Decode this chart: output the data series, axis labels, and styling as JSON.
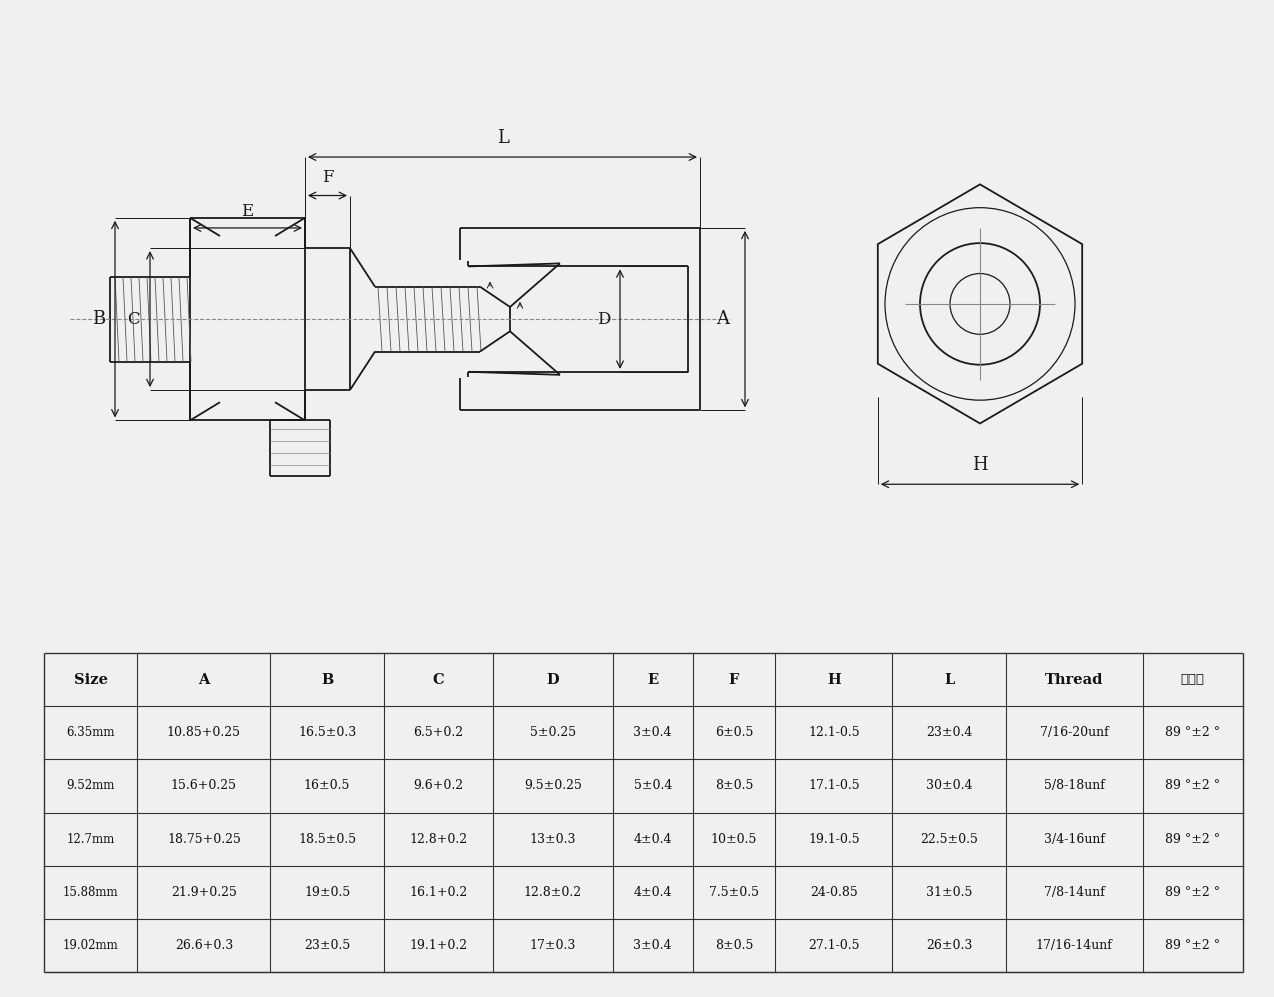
{
  "bg_color": "#f0f0f0",
  "table_headers": [
    "Size",
    "A",
    "B",
    "C",
    "D",
    "E",
    "F",
    "H",
    "L",
    "Thread",
    "密封度"
  ],
  "table_rows": [
    [
      "6.35mm",
      "10.85+0.25",
      "16.5±0.3",
      "6.5+0.2",
      "5±0.25",
      "3±0.4",
      "6±0.5",
      "12.1-0.5",
      "23±0.4",
      "7/16-20unf",
      "89 °±2 °"
    ],
    [
      "9.52mm",
      "15.6+0.25",
      "16±0.5",
      "9.6+0.2",
      "9.5±0.25",
      "5±0.4",
      "8±0.5",
      "17.1-0.5",
      "30±0.4",
      "5/8-18unf",
      "89 °±2 °"
    ],
    [
      "12.7mm",
      "18.75+0.25",
      "18.5±0.5",
      "12.8+0.2",
      "13±0.3",
      "4±0.4",
      "10±0.5",
      "19.1-0.5",
      "22.5±0.5",
      "3/4-16unf",
      "89 °±2 °"
    ],
    [
      "15.88mm",
      "21.9+0.25",
      "19±0.5",
      "16.1+0.2",
      "12.8±0.2",
      "4±0.4",
      "7.5±0.5",
      "24-0.85",
      "31±0.5",
      "7/8-14unf",
      "89 °±2 °"
    ],
    [
      "19.02mm",
      "26.6+0.3",
      "23±0.5",
      "19.1+0.2",
      "17±0.3",
      "3±0.4",
      "8±0.5",
      "27.1-0.5",
      "26±0.3",
      "17/16-14unf",
      "89 °±2 °"
    ]
  ],
  "line_color": "#1a1a1a",
  "dim_color": "#1a1a1a",
  "table_line_color": "#333333",
  "center_line_color": "#888888"
}
